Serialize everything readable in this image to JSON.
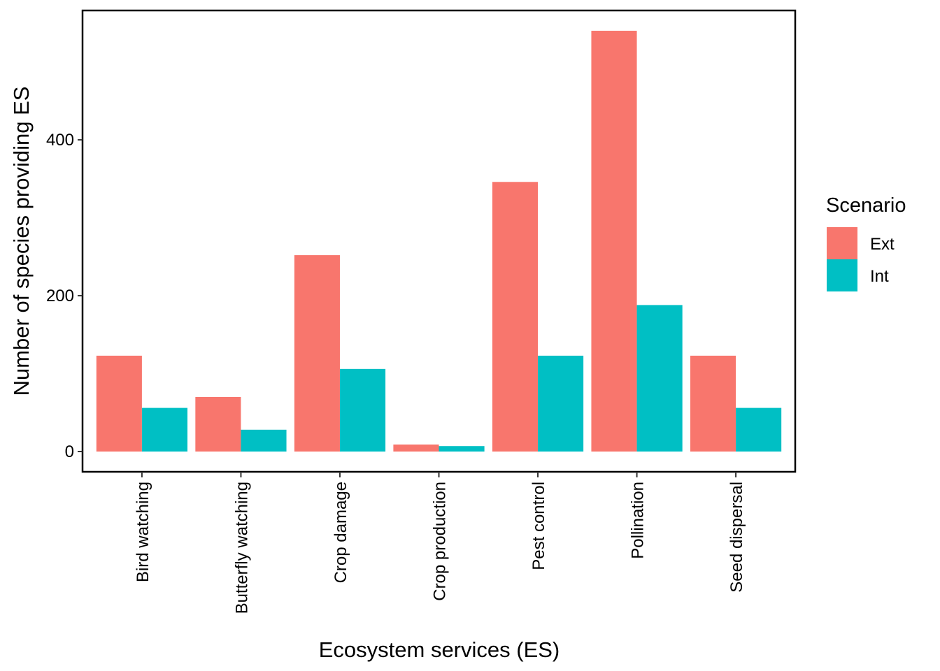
{
  "chart_data": {
    "type": "bar",
    "title": "",
    "xlabel": "Ecosystem services (ES)",
    "ylabel": "Number of species providing ES",
    "categories": [
      "Bird watching",
      "Butterfly watching",
      "Crop damage",
      "Crop production",
      "Pest control",
      "Pollination",
      "Seed dispersal"
    ],
    "series": [
      {
        "name": "Ext",
        "color": "#F8766D",
        "values": [
          123,
          70,
          252,
          9,
          346,
          540,
          123
        ]
      },
      {
        "name": "Int",
        "color": "#00BFC4",
        "values": [
          56,
          28,
          106,
          7,
          123,
          188,
          56
        ]
      }
    ],
    "yticks": [
      0,
      200,
      400
    ],
    "ylim": [
      -26,
      566
    ],
    "grid": false,
    "legend": {
      "title": "Scenario",
      "position": "right"
    }
  }
}
